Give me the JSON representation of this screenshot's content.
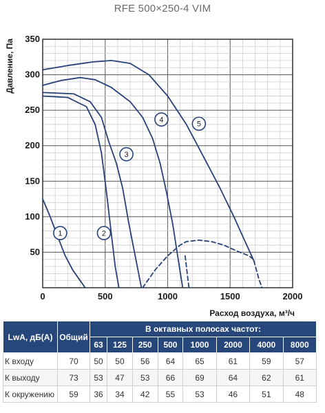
{
  "chart_data": {
    "type": "line",
    "title": "RFE 500×250-4 VIM",
    "xlabel": "Расход воздуха, м³/ч",
    "ylabel": "Давление, Па",
    "xlim": [
      0,
      2000
    ],
    "ylim": [
      0,
      350
    ],
    "xticks": [
      0,
      500,
      1000,
      1500,
      2000
    ],
    "yticks": [
      50,
      100,
      150,
      200,
      250,
      300,
      350
    ],
    "grid": true,
    "series": [
      {
        "name": "1",
        "style": "solid",
        "x": [
          0,
          60,
          120,
          180,
          240,
          300,
          340
        ],
        "y": [
          125,
          100,
          72,
          45,
          25,
          10,
          0
        ]
      },
      {
        "name": "2",
        "style": "solid",
        "x": [
          0,
          200,
          350,
          420,
          470,
          510,
          550,
          580,
          610
        ],
        "y": [
          270,
          268,
          255,
          230,
          190,
          135,
          75,
          30,
          0
        ]
      },
      {
        "name": "3",
        "style": "solid",
        "x": [
          0,
          250,
          380,
          470,
          530,
          590,
          640,
          690,
          740,
          790
        ],
        "y": [
          275,
          273,
          262,
          240,
          205,
          175,
          140,
          90,
          45,
          0
        ]
      },
      {
        "name": "4",
        "style": "solid",
        "x": [
          0,
          150,
          300,
          420,
          550,
          700,
          800,
          880,
          940,
          990,
          1040,
          1080,
          1120
        ],
        "y": [
          285,
          292,
          296,
          293,
          282,
          262,
          240,
          210,
          175,
          135,
          90,
          45,
          0
        ]
      },
      {
        "name": "5",
        "style": "solid",
        "x": [
          0,
          200,
          400,
          550,
          700,
          850,
          1000,
          1150,
          1300,
          1420,
          1530,
          1620,
          1690
        ],
        "y": [
          307,
          313,
          318,
          320,
          316,
          300,
          270,
          230,
          180,
          140,
          100,
          65,
          38
        ]
      },
      {
        "name": "",
        "style": "dashed",
        "x": [
          800,
          900,
          1000,
          1100,
          1150,
          1250,
          1350,
          1450,
          1550,
          1650,
          1700
        ],
        "y": [
          0,
          25,
          45,
          60,
          65,
          67,
          65,
          60,
          52,
          45,
          38
        ]
      },
      {
        "name": "",
        "style": "dashed",
        "x": [
          1690,
          1710,
          1730,
          1745,
          1755
        ],
        "y": [
          38,
          25,
          12,
          5,
          0
        ]
      },
      {
        "name": "",
        "style": "dashed",
        "x": [
          1140,
          1150,
          1160,
          1170
        ],
        "y": [
          45,
          30,
          15,
          0
        ]
      }
    ],
    "labels": [
      {
        "text": "1",
        "x": 140,
        "y": 77
      },
      {
        "text": "2",
        "x": 490,
        "y": 77
      },
      {
        "text": "3",
        "x": 670,
        "y": 188
      },
      {
        "text": "4",
        "x": 950,
        "y": 237
      },
      {
        "text": "5",
        "x": 1250,
        "y": 231
      }
    ]
  },
  "table": {
    "corner_label": "LwA, дБ(А)",
    "total_label": "Общий",
    "band_header": "В октавных полосах частот:",
    "frequencies": [
      "63",
      "125",
      "250",
      "500",
      "1000",
      "2000",
      "4000",
      "8000"
    ],
    "rows": [
      {
        "label": "К входу",
        "total": "70",
        "values": [
          "50",
          "50",
          "56",
          "64",
          "65",
          "61",
          "59",
          "57"
        ]
      },
      {
        "label": "К выходу",
        "total": "73",
        "values": [
          "53",
          "47",
          "53",
          "66",
          "69",
          "64",
          "62",
          "61"
        ]
      },
      {
        "label": "К окружению",
        "total": "59",
        "values": [
          "36",
          "34",
          "42",
          "55",
          "53",
          "46",
          "51",
          "48"
        ]
      }
    ]
  }
}
